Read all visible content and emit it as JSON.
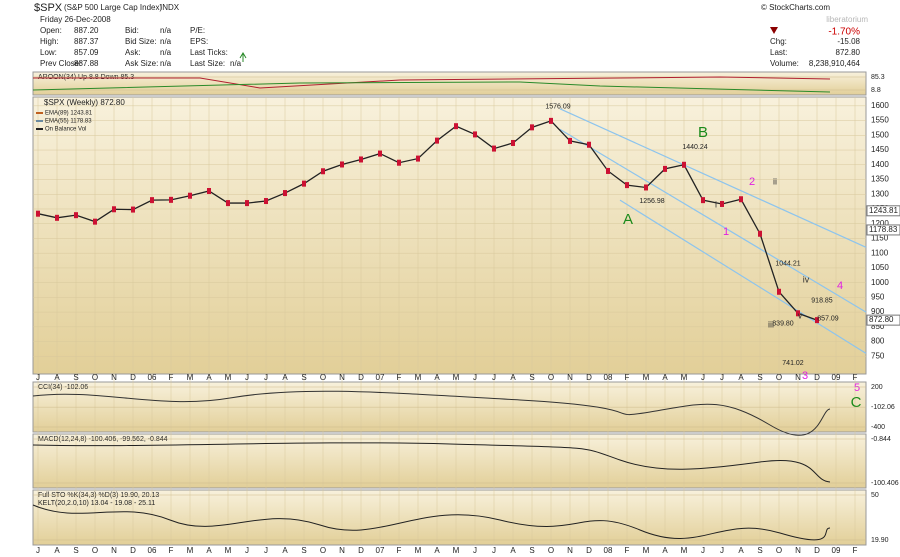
{
  "header": {
    "symbol": "$SPX",
    "name": "(S&P 500 Large Cap Index)",
    "exchange": "INDX",
    "date": "Friday 26-Dec-2008",
    "col1_labels": [
      "Open:",
      "High:",
      "Low:",
      "Prev Close:"
    ],
    "col1_values": [
      "887.20",
      "887.37",
      "857.09",
      "887.88"
    ],
    "col2_labels": [
      "Bid:",
      "Bid Size:",
      "Ask:",
      "Ask Size:"
    ],
    "col2_values": [
      "n/a",
      "n/a",
      "n/a",
      "n/a"
    ],
    "col3_labels": [
      "P/E:",
      "EPS:",
      "Last Ticks:",
      "Last Size:"
    ],
    "last_size": "n/a",
    "change_pct": "-1.70%",
    "right_labels": [
      "Chg:",
      "Last:",
      "Volume:"
    ],
    "right_values": [
      "-15.08",
      "872.80",
      "8,238,910,464"
    ],
    "copyright": "© StockCharts.com",
    "watermark": "liberatorium"
  },
  "chart_data": {
    "type": "line",
    "title": "$SPX (Weekly) 872.80",
    "indicator_labels": [
      "EMA(89) 1243.81",
      "EMA(55) 1178.83",
      "On Balance Vol"
    ],
    "categories": [
      "J",
      "A",
      "S",
      "O",
      "N",
      "D",
      "06",
      "F",
      "M",
      "A",
      "M",
      "J",
      "J",
      "A",
      "S",
      "O",
      "N",
      "D",
      "07",
      "F",
      "M",
      "A",
      "M",
      "J",
      "J",
      "A",
      "S",
      "O",
      "N",
      "D",
      "08",
      "F",
      "M",
      "A",
      "M",
      "J",
      "J",
      "A",
      "S",
      "O",
      "N",
      "D",
      "09",
      "F"
    ],
    "series": [
      {
        "name": "$SPX (Weekly) 872.80",
        "color": "#222222",
        "values": [
          1234,
          1220,
          1229,
          1207,
          1249,
          1248,
          1280,
          1281,
          1295,
          1311,
          1270,
          1270,
          1277,
          1304,
          1336,
          1378,
          1401,
          1418,
          1438,
          1407,
          1421,
          1482,
          1531,
          1503,
          1455,
          1474,
          1527,
          1549,
          1481,
          1468,
          1379,
          1331,
          1323,
          1386,
          1400,
          1280,
          1267,
          1283,
          1166,
          969,
          896,
          872.8,
          null,
          null
        ]
      }
    ],
    "ylim": [
      690,
      1630
    ],
    "yticks": [
      750,
      800,
      850,
      900,
      950,
      1000,
      1050,
      1100,
      1150,
      1200,
      1250,
      1300,
      1350,
      1400,
      1450,
      1500,
      1550,
      1600
    ],
    "right_labels": [
      {
        "value": 1243.81,
        "label": "1243.81"
      },
      {
        "value": 1178.83,
        "label": "1178.83"
      },
      {
        "value": 872.8,
        "label": "872.80"
      }
    ],
    "price_labels": [
      1576.09,
      1440.24,
      1256.98,
      1044.21,
      918.85,
      {
        "value": 839.8,
        "label": "839.80"
      },
      857.09,
      741.02
    ],
    "wave_labels": [
      {
        "text": "A",
        "color": "#1a8a1a"
      },
      {
        "text": "B",
        "color": "#1a8a1a"
      },
      {
        "text": "C",
        "color": "#1a8a1a"
      },
      {
        "text": "1",
        "color": "#e020e0"
      },
      {
        "text": "2",
        "color": "#e020e0"
      },
      {
        "text": "3",
        "color": "#e020e0"
      },
      {
        "text": "4",
        "color": "#e020e0"
      },
      {
        "text": "5",
        "color": "#e020e0"
      },
      {
        "text": "i",
        "color": "#333333"
      },
      {
        "text": "ii",
        "color": "#333333"
      },
      {
        "text": "iii",
        "color": "#333333"
      },
      {
        "text": "iv",
        "color": "#333333"
      },
      {
        "text": "v",
        "color": "#333333"
      }
    ],
    "panels": [
      {
        "title": "AROON(34) Up 8.8 Down 85.3",
        "ticks": [
          85.3,
          8.8
        ]
      },
      {
        "title": "CCI(34) -102.06",
        "ticks": [
          200,
          -102.06,
          -400
        ]
      },
      {
        "title": "MACD(12,24,8) -100.406, -99.562, -0.844",
        "ticks": [
          -0.844,
          -100.406
        ]
      },
      {
        "title": "Full STO %K(34,3) %D(3) 19.90, 20.13",
        "subtitle": "KELT(20,2.0,10) 13.04 - 19.08 - 25.11",
        "ticks": [
          50,
          {
            "value": 19.9,
            "label": "19.90"
          }
        ]
      }
    ]
  }
}
